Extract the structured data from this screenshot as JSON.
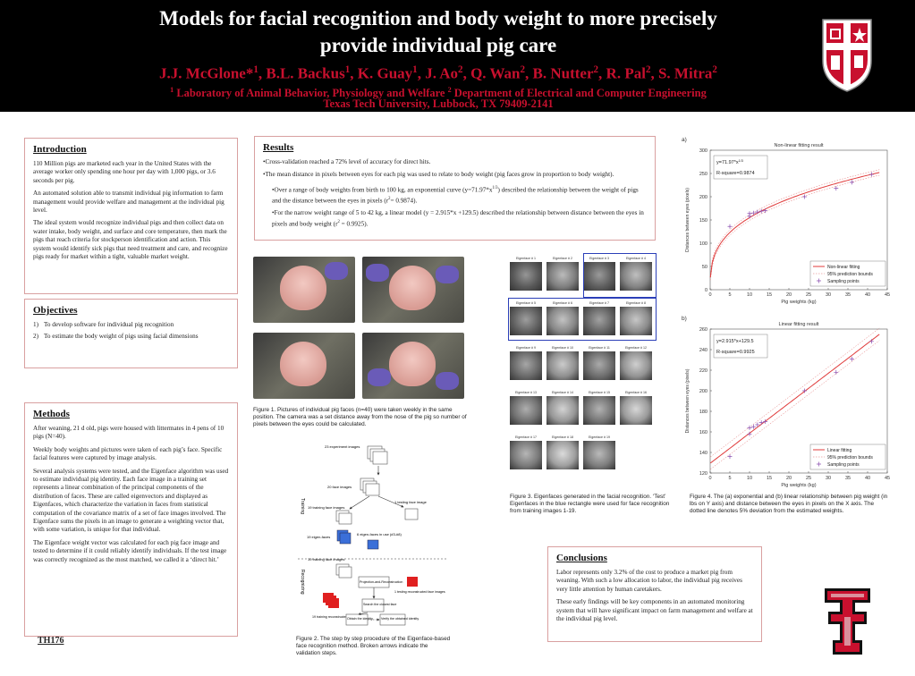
{
  "header": {
    "title_line1": "Models for facial recognition and body weight to more precisely",
    "title_line2": "provide  individual pig care",
    "authors": [
      "J.J. McGlone*",
      "1",
      ", B.L. Backus",
      "1",
      ", K. Guay",
      "1",
      ", J. Ao",
      "2",
      ", Q. Wan",
      "2",
      ", B. Nutter",
      "2",
      ", R. Pal",
      "2",
      ", S. Mitra",
      "2"
    ],
    "affil_sup1": "1",
    "affil_text1": " Laboratory of Animal Behavior, Physiology and Welfare ",
    "affil_sup2": "2",
    "affil_text2": " Department of Electrical and Computer Engineering",
    "affil_line2": "Texas Tech University, Lubbock, TX 79409-2141"
  },
  "introduction": {
    "heading": "Introduction",
    "paragraphs": [
      "110 Million pigs are marketed each year in the United States with the average worker only spending one hour per day with 1,000 pigs, or 3.6 seconds per pig.",
      "An automated solution able to transmit individual pig information to farm management would provide welfare and management at the individual pig level.",
      "The ideal system would recognize individual pigs and then collect data on water intake, body weight, and surface and core temperature, then mark the pigs that reach criteria for stockperson identification and action. This system would identify sick pigs that need treatment and care, and recognize pigs ready for market within a tight, valuable market weight."
    ]
  },
  "objectives": {
    "heading": "Objectives",
    "items": [
      "To develop software for individual pig recognition",
      "To estimate the body weight of pigs using facial dimensions"
    ],
    "markers": [
      "1)",
      "2)"
    ]
  },
  "methods": {
    "heading": "Methods",
    "paragraphs": [
      "After weaning, 21 d old, pigs were housed with littermates in 4 pens of 10 pigs (N=40).",
      "Weekly body weights and pictures were taken of each pig’s face. Specific facial features were captured by image analysis.",
      "Several analysis systems were tested, and the Eigenface algorithm was used to estimate individual pig identity. Each face image in a training set represents a linear combination of the principal components of the distribution of faces. These are called eigenvectors and displayed as Eigenfaces, which characterize the variation in faces from statistical computation of the covariance matrix of a set of face images involved. The Eigenface sums the pixels in an image to generate a weighting vector that, with some variation, is unique for that individual.",
      "The Eigenface weight vector was calculated for each pig face image and tested to determine if it could reliably identify individuals. If the test image was correctly recognized as the most matched, we called it a ‘direct hit.’"
    ]
  },
  "results": {
    "heading": "Results",
    "paragraphs": [
      "•Cross-validation reached a 72% level of accuracy for direct hits.",
      "•The mean distance in pixels between eyes for each pig was used to relate to body weight (pig faces grow in proportion to body weight)."
    ],
    "indented": [
      "•Over a range of body weights from birth to 100 kg, an exponential curve (y=71.97*x",
      "1/3",
      ") described the relationship between the weight of pigs and the distance between the eyes in pixels (r",
      "2",
      "= 0.9874).",
      "•For the narrow weight range of 5 to 42 kg, a linear model (y = 2.915*x +129.5) described the relationship between distance between the eyes in pixels and body weight (r",
      "2",
      " = 0.9925)."
    ]
  },
  "conclusions": {
    "heading": "Conclusions",
    "paragraphs": [
      "Labor represents only 3.2% of the cost to produce a market pig from weaning. With such a low allocation to labor, the individual pig receives very little attention by human caretakers.",
      "These early findings will be key components in an automated monitoring system that will have significant impact on farm management and welfare at the individual pig level."
    ]
  },
  "poster_id": "TH176",
  "figures": {
    "fig1_caption": "Figure 1. Pictures of individual pig faces (n=40) were taken weekly in the same position. The camera was a set distance away from the nose of the pig so number of pixels between the eyes could be calculated.",
    "fig2_caption": "Figure 2. The step by step procedure of the Eigenface-based face recognition method. Broken arrows indicate the validation steps.",
    "fig3_caption": "Figure 3. Eigenfaces generated in the facial recognition. ‘Test’ Eigenfaces in the blue rectangle were used for face recognition from training images 1-19.",
    "fig4_caption": "Figure 4. The (a) exponential and (b) linear relationship between pig weight (in lbs on Y axis) and distance between the eyes in pixels on the X axis. The dotted line denotes 5% deviation from the estimated weights."
  },
  "eigenfaces": {
    "labels": [
      "Eigenface # 1",
      "Eigenface # 2",
      "Eigenface # 3",
      "Eigenface # 4",
      "Eigenface # 5",
      "Eigenface # 6",
      "Eigenface # 7",
      "Eigenface # 8",
      "Eigenface # 9",
      "Eigenface # 10",
      "Eigenface # 11",
      "Eigenface # 12",
      "Eigenface # 13",
      "Eigenface # 14",
      "Eigenface # 15",
      "Eigenface # 16",
      "Eigenface # 17",
      "Eigenface # 18",
      "Eigenface # 19"
    ]
  },
  "flowchart": {
    "training_label": "Training",
    "recognizing_label": "Recognizing",
    "boxes": {
      "experiment_images": "23 experiment images",
      "face_images": "20 face images",
      "training_face_images": "19 training face images",
      "testing_face_image": "1 testing face image",
      "eigen_faces": "19 eigen-faces",
      "eigen_faces_6": "6 eigen-faces in use (#3-#8)",
      "training_face_images_2": "19 training face images",
      "projection": "Projection-and-Reconstruction",
      "testing_reconstructed": "1 testing reconstructed face images",
      "search_closest": "Search the closest face",
      "training_reconstructed": "19 training reconstructed face images",
      "obtain_identity": "Obtain the identity",
      "verify_identity": "Verify the obtained identity"
    }
  },
  "chart_data": [
    {
      "panel_label": "a)",
      "type": "scatter",
      "title": "Non-linear fitting result",
      "xlabel": "Pig weights (kg)",
      "ylabel": "Distances between eyes (pixels)",
      "xlim": [
        0,
        45
      ],
      "ylim": [
        0,
        300
      ],
      "xticks": [
        0,
        5,
        10,
        15,
        20,
        25,
        30,
        35,
        40,
        45
      ],
      "yticks": [
        0,
        50,
        100,
        150,
        200,
        250,
        300
      ],
      "annotation_eq": "y=71.97*x",
      "annotation_eq_sup": "1/3",
      "annotation_r2": "R-square=0.9874",
      "legend": [
        "Non-linear fitting",
        "95% prediction bounds",
        "Sampling points"
      ],
      "legend_position": "bottom-right",
      "fit": {
        "coef": 71.97,
        "exponent": 0.3333
      },
      "points": [
        [
          5,
          136
        ],
        [
          10,
          158
        ],
        [
          10,
          164
        ],
        [
          11,
          165
        ],
        [
          12,
          167
        ],
        [
          13,
          169
        ],
        [
          14,
          170
        ],
        [
          24,
          200
        ],
        [
          32,
          218
        ],
        [
          36,
          231
        ],
        [
          41,
          248
        ]
      ],
      "colors": {
        "fit": "#e03b3b",
        "bounds": "#e06a6a",
        "points": "#8a4fb0"
      }
    },
    {
      "panel_label": "b)",
      "type": "scatter",
      "title": "Linear fitting result",
      "xlabel": "Pig weights (kg)",
      "ylabel": "Distances between eyes (pixels)",
      "xlim": [
        0,
        45
      ],
      "ylim": [
        120,
        260
      ],
      "xticks": [
        0,
        5,
        10,
        15,
        20,
        25,
        30,
        35,
        40,
        45
      ],
      "yticks": [
        120,
        140,
        160,
        180,
        200,
        220,
        240,
        260
      ],
      "annotation_eq": "y=2.915*x+129.5",
      "annotation_r2": "R-square=0.9925",
      "legend": [
        "Linear fitting",
        "95% prediction bounds",
        "Sampling points"
      ],
      "legend_position": "bottom-right",
      "fit": {
        "slope": 2.915,
        "intercept": 129.5
      },
      "points": [
        [
          5,
          136
        ],
        [
          10,
          158
        ],
        [
          10,
          164
        ],
        [
          11,
          165
        ],
        [
          12,
          167
        ],
        [
          13,
          169
        ],
        [
          14,
          170
        ],
        [
          24,
          200
        ],
        [
          32,
          218
        ],
        [
          36,
          231
        ],
        [
          41,
          248
        ]
      ],
      "colors": {
        "fit": "#e03b3b",
        "bounds": "#e06a6a",
        "points": "#8a4fb0"
      }
    }
  ]
}
